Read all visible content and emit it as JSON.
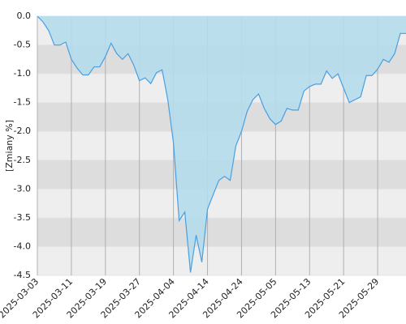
{
  "chart_data": {
    "type": "area",
    "y_label": "[Zmiany %]",
    "color": "#b5dcec",
    "line_color": "#4a9fe0",
    "band_colors": [
      "#eeeeee",
      "#dddddd"
    ],
    "x": [
      "2025-03-03",
      "2025-03-04",
      "2025-03-05",
      "2025-03-06",
      "2025-03-07",
      "2025-03-10",
      "2025-03-11",
      "2025-03-12",
      "2025-03-13",
      "2025-03-14",
      "2025-03-17",
      "2025-03-18",
      "2025-03-19",
      "2025-03-20",
      "2025-03-21",
      "2025-03-24",
      "2025-03-25",
      "2025-03-26",
      "2025-03-27",
      "2025-03-28",
      "2025-03-31",
      "2025-04-01",
      "2025-04-02",
      "2025-04-03",
      "2025-04-04",
      "2025-04-07",
      "2025-04-08",
      "2025-04-09",
      "2025-04-10",
      "2025-04-11",
      "2025-04-14",
      "2025-04-15",
      "2025-04-16",
      "2025-04-17",
      "2025-04-22",
      "2025-04-23",
      "2025-04-24",
      "2025-04-25",
      "2025-04-28",
      "2025-04-29",
      "2025-04-30",
      "2025-05-02",
      "2025-05-05",
      "2025-05-06",
      "2025-05-07",
      "2025-05-08",
      "2025-05-09",
      "2025-05-12",
      "2025-05-13",
      "2025-05-14",
      "2025-05-15",
      "2025-05-16",
      "2025-05-19",
      "2025-05-20",
      "2025-05-21",
      "2025-05-22",
      "2025-05-23",
      "2025-05-26",
      "2025-05-27",
      "2025-05-28",
      "2025-05-29",
      "2025-05-30",
      "2025-06-02",
      "2025-06-03",
      "2025-06-04",
      "2025-06-05"
    ],
    "values": [
      0,
      -0.1,
      -0.25,
      -0.5,
      -0.5,
      -0.45,
      -0.75,
      -0.9,
      -1.02,
      -1.02,
      -0.88,
      -0.88,
      -0.7,
      -0.47,
      -0.65,
      -0.75,
      -0.65,
      -0.85,
      -1.12,
      -1.07,
      -1.17,
      -0.98,
      -0.93,
      -1.45,
      -2.2,
      -3.55,
      -3.4,
      -4.45,
      -3.8,
      -4.27,
      -3.35,
      -3.1,
      -2.85,
      -2.78,
      -2.85,
      -2.25,
      -2.0,
      -1.65,
      -1.45,
      -1.35,
      -1.6,
      -1.78,
      -1.88,
      -1.82,
      -1.6,
      -1.63,
      -1.63,
      -1.3,
      -1.22,
      -1.18,
      -1.18,
      -0.95,
      -1.08,
      -1.0,
      -1.25,
      -1.5,
      -1.45,
      -1.4,
      -1.03,
      -1.03,
      -0.92,
      -0.75,
      -0.8,
      -0.65,
      -0.3,
      -0.3
    ],
    "xticks": [
      "2025-03-03",
      "2025-03-11",
      "2025-03-19",
      "2025-03-27",
      "2025-04-04",
      "2025-04-14",
      "2025-04-24",
      "2025-05-05",
      "2025-05-13",
      "2025-05-21",
      "2025-05-29"
    ],
    "ylim": [
      -4.5,
      0
    ],
    "yticks": [
      {
        "value": 0,
        "label": "0.0"
      },
      -0.5,
      {
        "value": -1,
        "label": "-1.0"
      },
      -1.5,
      {
        "value": -2,
        "label": "-2.0"
      },
      -2.5,
      {
        "value": -3,
        "label": "-3.0"
      },
      -3.5,
      {
        "value": -4,
        "label": "-4.0"
      },
      -4.5
    ],
    "grid": true
  }
}
